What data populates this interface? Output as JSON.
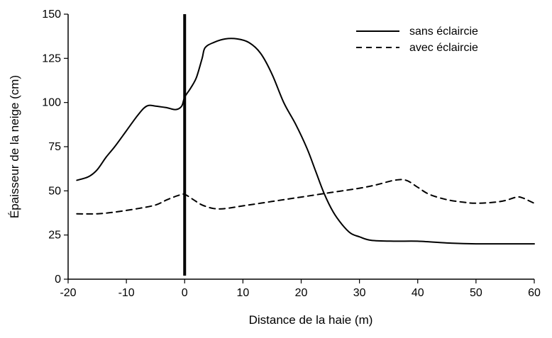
{
  "chart_data": {
    "type": "line",
    "title": "",
    "xlabel": "Distance de la haie (m)",
    "ylabel": "Épaisseur de la neige (cm)",
    "xlim": [
      -20,
      60
    ],
    "ylim": [
      0,
      150
    ],
    "x_ticks": [
      -20,
      -10,
      0,
      10,
      20,
      30,
      40,
      50,
      60
    ],
    "x_tick_labels": [
      "-20",
      "-10",
      "0",
      "10",
      "20",
      "30",
      "40",
      "50",
      "60"
    ],
    "y_ticks": [
      0,
      25,
      50,
      75,
      100,
      125,
      150
    ],
    "y_tick_labels": [
      "0",
      "25",
      "50",
      "75",
      "100",
      "125",
      "150"
    ],
    "grid": false,
    "legend_position": "top-right",
    "reference_line": {
      "x": 0,
      "y_range": [
        2,
        150
      ],
      "color": "#000000"
    },
    "series": [
      {
        "name": "sans éclaircie",
        "style": "solid",
        "color": "#000000",
        "points": [
          [
            -18.5,
            56
          ],
          [
            -16.5,
            58
          ],
          [
            -15,
            62
          ],
          [
            -13.5,
            69
          ],
          [
            -12,
            75
          ],
          [
            -10,
            84
          ],
          [
            -8,
            93
          ],
          [
            -6.5,
            98
          ],
          [
            -5,
            98
          ],
          [
            -3,
            97
          ],
          [
            -1.5,
            96
          ],
          [
            -0.5,
            98
          ],
          [
            0,
            103
          ],
          [
            1,
            108
          ],
          [
            2,
            114
          ],
          [
            3,
            125
          ],
          [
            3.5,
            131
          ],
          [
            5,
            134
          ],
          [
            7,
            136
          ],
          [
            9,
            136
          ],
          [
            11,
            134
          ],
          [
            13,
            128
          ],
          [
            15,
            116
          ],
          [
            17,
            100
          ],
          [
            19,
            88
          ],
          [
            21,
            74
          ],
          [
            22.5,
            61
          ],
          [
            24,
            48
          ],
          [
            25.5,
            38
          ],
          [
            27,
            31
          ],
          [
            28.5,
            26
          ],
          [
            30,
            24
          ],
          [
            32,
            22
          ],
          [
            36,
            21.5
          ],
          [
            40,
            21.5
          ],
          [
            45,
            20.5
          ],
          [
            50,
            20
          ],
          [
            55,
            20
          ],
          [
            60,
            20
          ]
        ]
      },
      {
        "name": "avec éclaircie",
        "style": "dashed",
        "color": "#000000",
        "points": [
          [
            -18.5,
            37
          ],
          [
            -15,
            37
          ],
          [
            -12,
            38
          ],
          [
            -8,
            40
          ],
          [
            -5,
            42
          ],
          [
            -3,
            45
          ],
          [
            -1,
            47.5
          ],
          [
            0,
            48
          ],
          [
            1.5,
            45
          ],
          [
            3,
            42
          ],
          [
            5,
            40
          ],
          [
            7,
            40
          ],
          [
            10,
            41.5
          ],
          [
            15,
            44
          ],
          [
            20,
            46.5
          ],
          [
            25,
            49
          ],
          [
            30,
            51.5
          ],
          [
            33,
            53.5
          ],
          [
            36,
            56
          ],
          [
            38,
            56
          ],
          [
            40,
            52
          ],
          [
            42,
            48
          ],
          [
            45,
            45
          ],
          [
            48,
            43.5
          ],
          [
            50,
            43
          ],
          [
            53,
            43.5
          ],
          [
            55,
            44.5
          ],
          [
            57,
            46.5
          ],
          [
            58,
            46
          ],
          [
            59,
            44.5
          ],
          [
            60,
            43
          ]
        ]
      }
    ]
  }
}
